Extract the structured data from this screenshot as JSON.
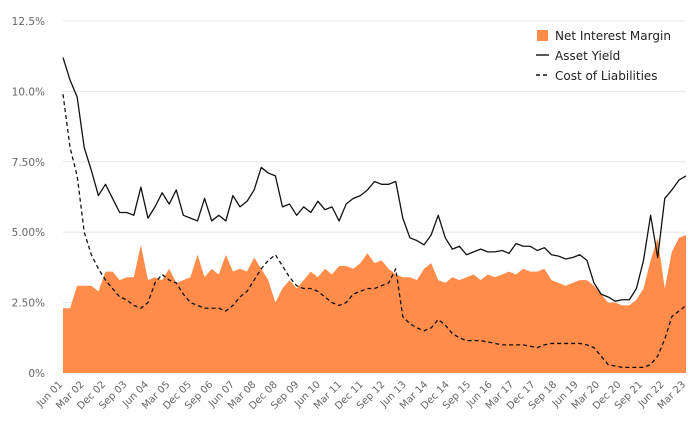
{
  "chart_data": {
    "type": "area+line",
    "title": "",
    "xlabel": "",
    "ylabel": "",
    "ylim": [
      0,
      12.5
    ],
    "y_ticks": [
      "0%",
      "2.50%",
      "5.00%",
      "7.50%",
      "10.0%",
      "12.5%"
    ],
    "y_tick_values": [
      0,
      2.5,
      5,
      7.5,
      10,
      12.5
    ],
    "x_ticks": [
      "Jun 01",
      "Mar 02",
      "Dec 02",
      "Sep 03",
      "Jun 04",
      "Mar 05",
      "Dec 05",
      "Sep 06",
      "Jun 07",
      "Mar 08",
      "Dec 08",
      "Sep 09",
      "Jun 10",
      "Mar 11",
      "Dec 11",
      "Sep 12",
      "Jun 13",
      "Mar 14",
      "Dec 14",
      "Sep 15",
      "Jun 16",
      "Mar 17",
      "Dec 17",
      "Sep 18",
      "Jun 19",
      "Mar 20",
      "Dec 20",
      "Sep 21",
      "Jun 22",
      "Mar 23"
    ],
    "grid": true,
    "legend_position": "top-right",
    "colors": {
      "nim": "#ff8c4a",
      "asset": "#111111",
      "cost": "#111111",
      "grid": "#e6e6e6"
    },
    "series": [
      {
        "name": "Net Interest Margin",
        "style": "area",
        "values": [
          2.3,
          2.3,
          3.1,
          3.1,
          3.1,
          2.9,
          3.6,
          3.6,
          3.3,
          3.4,
          3.4,
          4.55,
          3.3,
          3.4,
          3.3,
          3.7,
          3.2,
          3.3,
          3.4,
          4.2,
          3.4,
          3.7,
          3.5,
          4.2,
          3.6,
          3.7,
          3.6,
          4.1,
          3.7,
          3.3,
          2.5,
          3.0,
          3.3,
          3.0,
          3.3,
          3.6,
          3.4,
          3.7,
          3.5,
          3.8,
          3.8,
          3.7,
          3.9,
          4.25,
          3.9,
          4.0,
          3.7,
          3.5,
          3.4,
          3.4,
          3.3,
          3.7,
          3.9,
          3.3,
          3.2,
          3.4,
          3.3,
          3.4,
          3.5,
          3.3,
          3.5,
          3.4,
          3.5,
          3.6,
          3.5,
          3.7,
          3.6,
          3.6,
          3.7,
          3.3,
          3.2,
          3.1,
          3.2,
          3.3,
          3.3,
          3.1,
          2.8,
          2.5,
          2.5,
          2.4,
          2.4,
          2.6,
          3.0,
          4.0,
          4.8,
          3.0,
          4.3,
          4.8,
          4.9
        ]
      },
      {
        "name": "Asset Yield",
        "style": "solid",
        "values": [
          11.2,
          10.4,
          9.8,
          8.0,
          7.2,
          6.3,
          6.7,
          6.2,
          5.7,
          5.7,
          5.6,
          6.6,
          5.5,
          5.9,
          6.4,
          6.0,
          6.5,
          5.6,
          5.5,
          5.4,
          6.2,
          5.4,
          5.6,
          5.4,
          6.3,
          5.9,
          6.1,
          6.5,
          7.3,
          7.1,
          7.0,
          5.9,
          6.0,
          5.6,
          5.9,
          5.7,
          6.1,
          5.8,
          5.9,
          5.4,
          6.0,
          6.2,
          6.3,
          6.5,
          6.8,
          6.7,
          6.7,
          6.8,
          5.5,
          4.8,
          4.7,
          4.55,
          4.9,
          5.6,
          4.8,
          4.4,
          4.5,
          4.2,
          4.3,
          4.4,
          4.3,
          4.3,
          4.35,
          4.25,
          4.6,
          4.5,
          4.5,
          4.35,
          4.45,
          4.2,
          4.15,
          4.05,
          4.1,
          4.2,
          4.0,
          3.2,
          2.8,
          2.7,
          2.55,
          2.6,
          2.6,
          3.0,
          4.0,
          5.6,
          4.1,
          6.2,
          6.5,
          6.85,
          7.0
        ]
      },
      {
        "name": "Cost of Liabilities",
        "style": "dashed",
        "values": [
          9.9,
          8.0,
          7.0,
          5.0,
          4.2,
          3.7,
          3.3,
          3.0,
          2.7,
          2.6,
          2.4,
          2.3,
          2.5,
          3.2,
          3.5,
          3.3,
          3.2,
          2.8,
          2.5,
          2.4,
          2.3,
          2.3,
          2.3,
          2.2,
          2.4,
          2.7,
          2.9,
          3.3,
          3.7,
          4.0,
          4.2,
          3.8,
          3.4,
          3.1,
          3.0,
          3.0,
          2.9,
          2.7,
          2.5,
          2.4,
          2.5,
          2.8,
          2.9,
          3.0,
          3.0,
          3.1,
          3.2,
          3.7,
          2.0,
          1.75,
          1.6,
          1.5,
          1.6,
          1.9,
          1.7,
          1.4,
          1.25,
          1.15,
          1.15,
          1.15,
          1.1,
          1.05,
          1.0,
          1.0,
          1.0,
          1.0,
          0.95,
          0.9,
          1.0,
          1.05,
          1.05,
          1.05,
          1.05,
          1.05,
          1.0,
          0.9,
          0.6,
          0.3,
          0.25,
          0.2,
          0.2,
          0.2,
          0.2,
          0.3,
          0.6,
          1.2,
          2.0,
          2.2,
          2.4
        ]
      }
    ]
  }
}
